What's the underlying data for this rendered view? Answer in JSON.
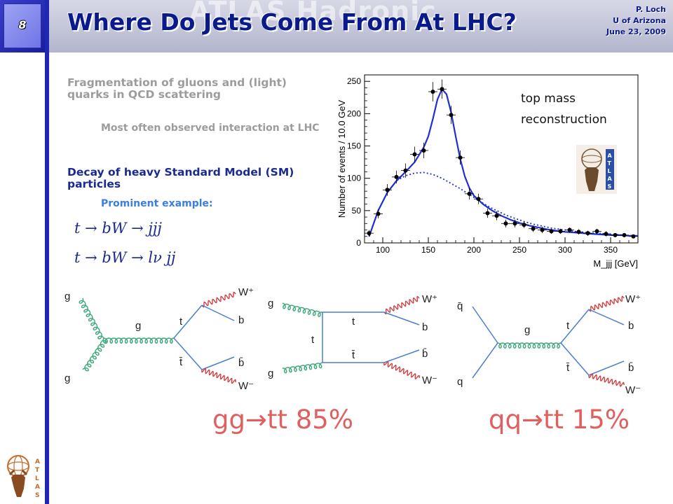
{
  "slide": {
    "number": "8",
    "title": "Where Do Jets Come From At LHC?",
    "watermark": "ATLAS Hadronic",
    "author": "P. Loch",
    "affiliation": "U of Arizona",
    "date": "June 23, 2009"
  },
  "bullets": {
    "fragmentation": "Fragmentation of gluons and (light) quarks in QCD scattering",
    "fragmentation_sub": "Most often observed interaction at LHC",
    "decay": "Decay of heavy Standard Model (SM) particles",
    "decay_sub": "Prominent example:",
    "eq1": "t → bW → jjj",
    "eq2": "t → bW → lν jj"
  },
  "plot_label": [
    "top mass",
    "reconstruction"
  ],
  "feynman": {
    "d1": {
      "g_top": "g",
      "g_bot": "g",
      "g_mid": "g",
      "t": "t",
      "tbar": "t̄",
      "W_plus": "W⁺",
      "b": "b",
      "bbar": "b̄",
      "W_minus": "W⁻"
    },
    "d2": {
      "g_top": "g",
      "g_bot": "g",
      "t_top": "t",
      "t_mid": "t",
      "tbar": "t̄",
      "W_plus": "W⁺",
      "b": "b",
      "bbar": "b̄",
      "W_minus": "W⁻"
    },
    "d3": {
      "qbar": "q̄",
      "q": "q",
      "g_mid": "g",
      "t": "t",
      "tbar": "t̄",
      "W_plus": "W⁺",
      "b": "b",
      "bbar": "b̄",
      "W_minus": "W⁻"
    },
    "pct1": "gg→tt  85%",
    "pct2": "qq→tt  15%"
  },
  "colors": {
    "title": "#0a1a8c",
    "accent": "#1f28b6",
    "fit": "#1f2fd0",
    "percent": "#e06060",
    "gluon": "#3aa878",
    "wboson": "#d04040",
    "fermion": "#4a7fd0"
  },
  "chart_data": {
    "type": "scatter",
    "xlabel": "M_jjj [GeV]",
    "ylabel": "Number of events / 10.0 GeV",
    "xlim": [
      80,
      380
    ],
    "ylim": [
      0,
      260
    ],
    "x_ticks": [
      100,
      150,
      200,
      250,
      300,
      350
    ],
    "y_ticks": [
      0,
      50,
      100,
      150,
      200,
      250
    ],
    "series": [
      {
        "style": "points",
        "x": [
          85,
          95,
          105,
          115,
          125,
          135,
          145,
          155,
          165,
          175,
          185,
          195,
          205,
          215,
          225,
          235,
          245,
          255,
          265,
          275,
          285,
          295,
          305,
          315,
          325,
          335,
          345,
          355,
          365,
          375
        ],
        "y": [
          15,
          45,
          82,
          102,
          112,
          137,
          143,
          234,
          238,
          198,
          132,
          76,
          68,
          46,
          42,
          30,
          30,
          28,
          22,
          20,
          18,
          18,
          20,
          17,
          15,
          18,
          14,
          12,
          12,
          10
        ],
        "yerr": [
          5,
          7,
          9,
          10,
          11,
          12,
          12,
          15,
          15,
          14,
          11,
          9,
          8,
          7,
          7,
          6,
          6,
          5,
          5,
          5,
          4,
          4,
          4,
          4,
          4,
          4,
          4,
          3,
          3,
          3
        ]
      },
      {
        "style": "solid",
        "x": [
          85,
          95,
          105,
          115,
          125,
          135,
          145,
          150,
          155,
          160,
          165,
          170,
          175,
          180,
          185,
          190,
          195,
          200,
          210,
          220,
          230,
          240,
          250,
          260,
          270,
          280,
          290,
          300,
          310,
          320,
          330,
          340,
          350,
          360,
          370,
          380
        ],
        "y": [
          10,
          50,
          78,
          96,
          110,
          125,
          148,
          165,
          192,
          222,
          238,
          230,
          202,
          165,
          130,
          103,
          85,
          73,
          60,
          50,
          42,
          36,
          31,
          27,
          24,
          21,
          19,
          17,
          16,
          15,
          14,
          13,
          12,
          12,
          11,
          11
        ]
      },
      {
        "style": "dashed",
        "x": [
          85,
          95,
          105,
          115,
          125,
          135,
          145,
          155,
          165,
          175,
          185,
          195,
          205,
          215,
          225,
          235,
          245,
          255,
          265,
          275,
          285,
          295,
          305,
          315,
          325,
          335,
          345,
          355,
          365,
          375
        ],
        "y": [
          10,
          50,
          78,
          96,
          104,
          108,
          109,
          106,
          100,
          92,
          84,
          75,
          66,
          57,
          50,
          43,
          38,
          33,
          29,
          26,
          23,
          21,
          19,
          17,
          16,
          15,
          14,
          13,
          12,
          11
        ]
      }
    ]
  }
}
